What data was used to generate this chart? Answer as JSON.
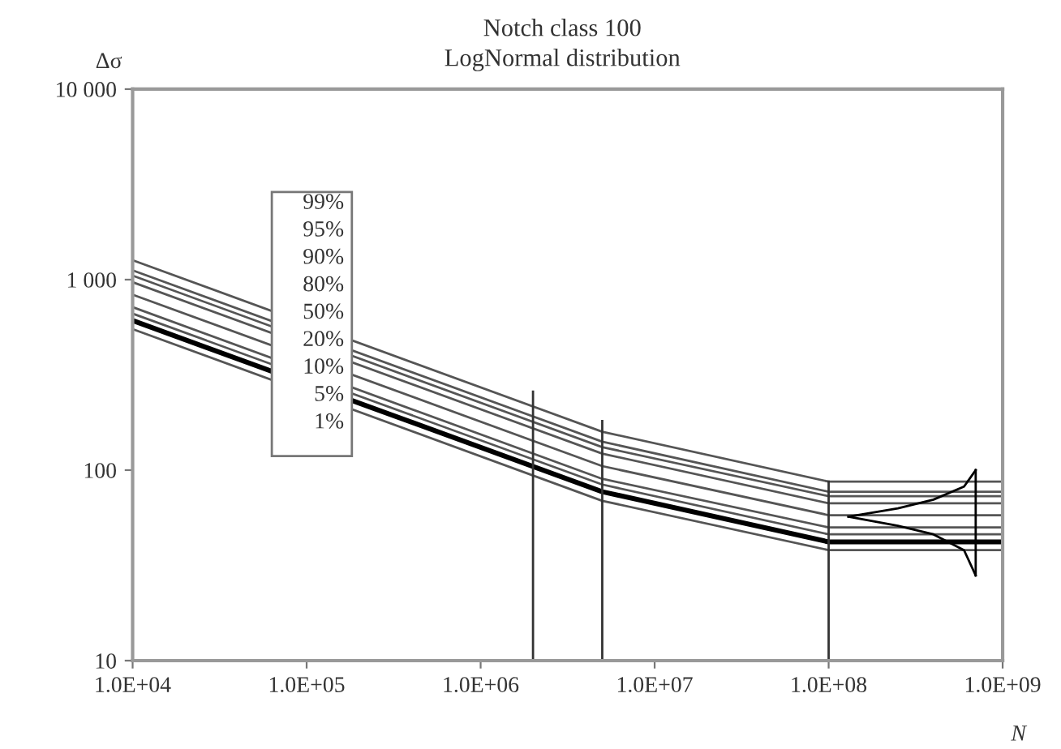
{
  "chart_data": {
    "type": "line",
    "title": "Notch class 100",
    "subtitle": "LogNormal distribution",
    "xlabel": "N",
    "ylabel": "Δσ",
    "log": "xy",
    "grid": false,
    "marker": "none",
    "line_style": "solid",
    "xlim": [
      10000,
      1000000000
    ],
    "ylim": [
      10,
      10000
    ],
    "xticks": [
      {
        "value": 10000,
        "label": "1.0E+04"
      },
      {
        "value": 100000,
        "label": "1.0E+05"
      },
      {
        "value": 1000000,
        "label": "1.0E+06"
      },
      {
        "value": 10000000,
        "label": "1.0E+07"
      },
      {
        "value": 100000000,
        "label": "1.0E+08"
      },
      {
        "value": 1000000000,
        "label": "1.0E+09"
      }
    ],
    "yticks": [
      10,
      100,
      {
        "value": 1000,
        "label": "1 000"
      },
      {
        "value": 10000,
        "label": "10 000"
      }
    ],
    "annotations": [
      "99%",
      "95%",
      "90%",
      "80%",
      "50%",
      "20%",
      "10%",
      "5%",
      "1%"
    ],
    "x": [
      10000,
      5000000,
      100000000,
      1000000000
    ],
    "series": [
      {
        "color": "#555555",
        "values": [
          1265,
          159,
          87,
          87
        ]
      },
      {
        "color": "#555555",
        "values": [
          1119,
          141,
          77,
          77
        ]
      },
      {
        "color": "#555555",
        "values": [
          1049,
          132,
          73,
          73
        ]
      },
      {
        "color": "#555555",
        "values": [
          969,
          122,
          67,
          67
        ]
      },
      {
        "color": "#555555",
        "values": [
          834,
          105,
          58,
          58
        ]
      },
      {
        "color": "#555555",
        "values": [
          717,
          90,
          50,
          50
        ]
      },
      {
        "color": "#555555",
        "values": [
          663,
          84,
          46,
          46
        ]
      },
      {
        "color": "#000000",
        "values": [
          610,
          77,
          42,
          42
        ]
      },
      {
        "color": "#555555",
        "values": [
          550,
          69,
          38,
          38
        ]
      },
      {
        "color": "#333333",
        "x": [
          2000000,
          2000000
        ],
        "values": [
          10,
          258
        ]
      },
      {
        "color": "#333333",
        "x": [
          5000000,
          5000000
        ],
        "values": [
          10,
          181
        ]
      },
      {
        "color": "#333333",
        "x": [
          100000000,
          100000000
        ],
        "values": [
          10,
          87
        ]
      },
      {
        "color": "#000000",
        "x": [
          130000000,
          250000000,
          400000000,
          600000000,
          700000000
        ],
        "values": [
          57,
          63,
          70,
          82,
          100
        ]
      },
      {
        "color": "#000000",
        "x": [
          130000000,
          250000000,
          400000000,
          600000000,
          700000000
        ],
        "values": [
          57,
          51,
          46,
          38,
          28
        ]
      },
      {
        "color": "#000000",
        "x": [
          700000000,
          700000000
        ],
        "values": [
          28,
          100
        ]
      }
    ]
  }
}
